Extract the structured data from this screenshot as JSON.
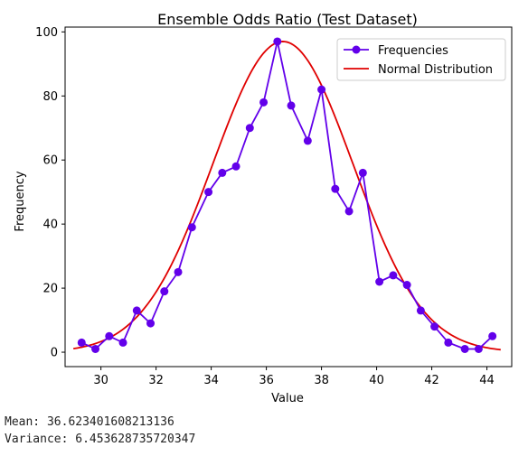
{
  "chart_data": {
    "type": "line",
    "title": "Ensemble Odds Ratio (Test Dataset)",
    "xlabel": "Value",
    "ylabel": "Frequency",
    "xlim": [
      28.7,
      44.9
    ],
    "ylim": [
      -4.5,
      101.5
    ],
    "xticks": [
      30,
      32,
      34,
      36,
      38,
      40,
      42,
      44
    ],
    "yticks": [
      0,
      20,
      40,
      60,
      80,
      100
    ],
    "grid": false,
    "legend": "top-right",
    "series": [
      {
        "name": "Frequencies",
        "type": "line+markers",
        "color": "#6200ea",
        "x": [
          29.3,
          29.8,
          30.3,
          30.8,
          31.3,
          31.8,
          32.3,
          32.8,
          33.3,
          33.9,
          34.4,
          34.9,
          35.4,
          35.9,
          36.4,
          36.9,
          37.5,
          38.0,
          38.5,
          39.0,
          39.5,
          40.1,
          40.6,
          41.1,
          41.6,
          42.1,
          42.6,
          43.2,
          43.7,
          44.2
        ],
        "values": [
          3,
          1,
          5,
          3,
          13,
          9,
          19,
          25,
          39,
          50,
          56,
          58,
          70,
          78,
          97,
          77,
          66,
          82,
          51,
          44,
          56,
          22,
          24,
          21,
          13,
          8,
          3,
          1,
          1,
          5
        ]
      },
      {
        "name": "Normal Distribution",
        "type": "line",
        "color": "#e00000",
        "mean": 36.6,
        "sd": 2.54,
        "peak": 97,
        "xrange": [
          29.0,
          44.5
        ]
      }
    ]
  },
  "stats": {
    "mean_text": "Mean: 36.623401608213136",
    "variance_text": "Variance: 6.453628735720347"
  }
}
